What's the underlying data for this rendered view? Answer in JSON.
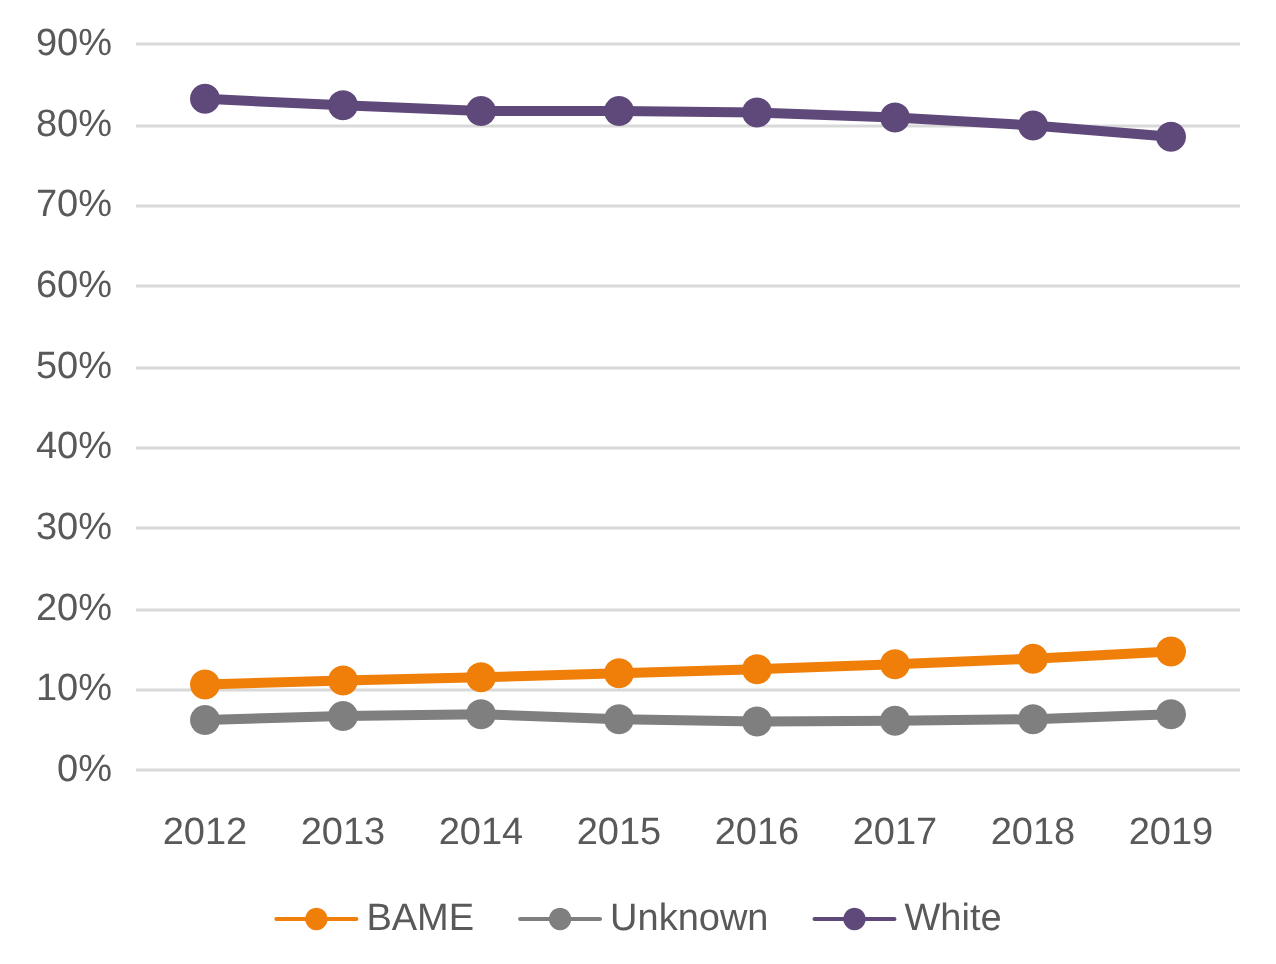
{
  "chart_data": {
    "type": "line",
    "categories": [
      "2012",
      "2013",
      "2014",
      "2015",
      "2016",
      "2017",
      "2018",
      "2019"
    ],
    "series": [
      {
        "name": "BAME",
        "color": "#f07f09",
        "values": [
          10.6,
          11.1,
          11.5,
          12.0,
          12.5,
          13.1,
          13.8,
          14.7
        ]
      },
      {
        "name": "Unknown",
        "color": "#7f7f7f",
        "values": [
          6.2,
          6.7,
          6.9,
          6.3,
          6.0,
          6.1,
          6.3,
          6.9
        ]
      },
      {
        "name": "White",
        "color": "#5f497a",
        "values": [
          83.2,
          82.4,
          81.7,
          81.7,
          81.5,
          80.9,
          79.9,
          78.5
        ]
      }
    ],
    "ylim": [
      0,
      90
    ],
    "yticks": [
      {
        "value": 0,
        "label": "0%"
      },
      {
        "value": 10,
        "label": "10%"
      },
      {
        "value": 20,
        "label": "20%"
      },
      {
        "value": 30,
        "label": "30%"
      },
      {
        "value": 40,
        "label": "40%"
      },
      {
        "value": 50,
        "label": "50%"
      },
      {
        "value": 60,
        "label": "60%"
      },
      {
        "value": 70,
        "label": "70%"
      },
      {
        "value": 80,
        "label": "80%"
      },
      {
        "value": 90,
        "label": "90%"
      }
    ],
    "grid": "y",
    "legend": "bottom",
    "marker": "circle",
    "line_style": "solid"
  }
}
